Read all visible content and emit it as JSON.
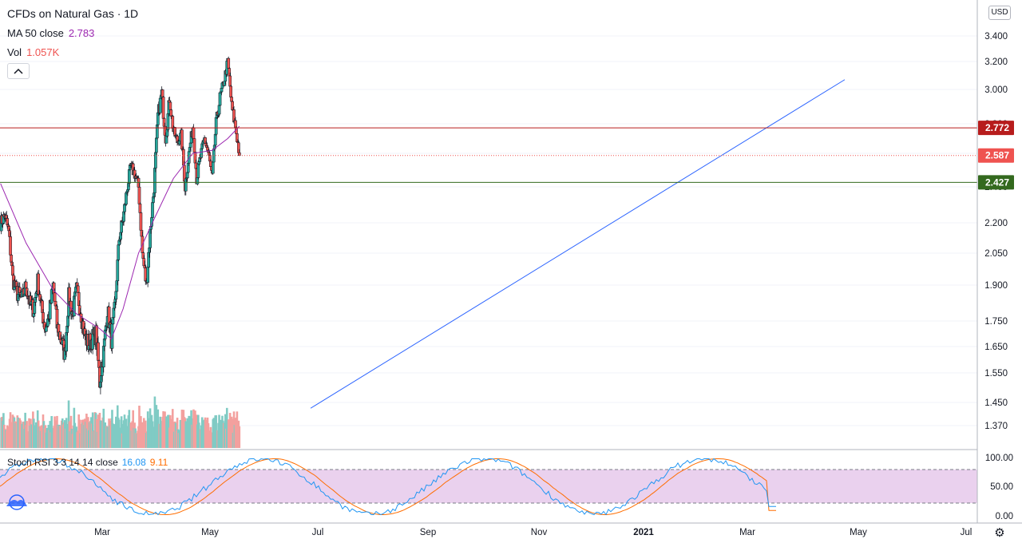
{
  "legend": {
    "title": "CFDs on Natural Gas · 1D",
    "ma_label": "MA 50 close",
    "ma_value": "2.783",
    "vol_label": "Vol",
    "vol_value": "1.057K",
    "collapse_icon": "chevron-up-icon"
  },
  "currency": "USD",
  "stoch": {
    "label": "Stoch RSI 3 3 14 14 close",
    "k_value": "16.08",
    "d_value": "9.11"
  },
  "colors": {
    "up": "#26a69a",
    "down": "#ef5350",
    "ma": "#9c27b0",
    "trendline": "#2962ff",
    "resistance": "#b71c1c",
    "support": "#33691e",
    "stoch_k": "#2196f3",
    "stoch_d": "#ff6d00",
    "stoch_band": "#e1bee7",
    "vol_up": "#80cbc4",
    "vol_down": "#f3a09e"
  },
  "chart_data": [
    {
      "type": "candlestick",
      "title": "CFDs on Natural Gas · 1D",
      "y_ticks": [
        "3.400",
        "3.200",
        "3.000",
        "2.800",
        "2.600",
        "2.400",
        "2.200",
        "2.050",
        "1.900",
        "1.750",
        "1.650",
        "1.550",
        "1.450",
        "1.370"
      ],
      "x_ticks": [
        "Mar",
        "May",
        "Jul",
        "Sep",
        "Nov",
        "2021",
        "Mar",
        "May",
        "Jul"
      ],
      "price_lines": [
        {
          "name": "resistance",
          "value": "2.772",
          "style": "solid"
        },
        {
          "name": "last_price",
          "value": "2.587",
          "style": "dotted"
        },
        {
          "name": "support",
          "value": "2.427",
          "style": "solid"
        }
      ],
      "trendline": {
        "start": {
          "date": "Jul",
          "value": 1.43
        },
        "end": {
          "date": "May 2021",
          "value": 3.07
        }
      },
      "close_series": [
        [
          "2020-01-02",
          2.2
        ],
        [
          "2020-01-10",
          2.24
        ],
        [
          "2020-01-17",
          2.15
        ],
        [
          "2020-01-24",
          1.93
        ],
        [
          "2020-01-31",
          1.87
        ],
        [
          "2020-02-10",
          1.84
        ],
        [
          "2020-02-17",
          1.9
        ],
        [
          "2020-02-24",
          1.82
        ],
        [
          "2020-03-02",
          1.8
        ],
        [
          "2020-03-09",
          1.92
        ],
        [
          "2020-03-16",
          1.8
        ],
        [
          "2020-03-23",
          1.72
        ],
        [
          "2020-03-30",
          1.78
        ],
        [
          "2020-04-06",
          1.9
        ],
        [
          "2020-04-13",
          1.73
        ],
        [
          "2020-04-20",
          1.68
        ],
        [
          "2020-04-27",
          1.62
        ],
        [
          "2020-05-04",
          1.85
        ],
        [
          "2020-05-11",
          1.78
        ],
        [
          "2020-05-18",
          1.88
        ],
        [
          "2020-05-25",
          1.8
        ],
        [
          "2020-06-01",
          1.7
        ],
        [
          "2020-06-08",
          1.66
        ],
        [
          "2020-06-15",
          1.68
        ],
        [
          "2020-06-22",
          1.7
        ],
        [
          "2020-06-29",
          1.52
        ],
        [
          "2020-07-06",
          1.63
        ],
        [
          "2020-07-13",
          1.8
        ],
        [
          "2020-07-20",
          1.68
        ],
        [
          "2020-07-27",
          1.82
        ],
        [
          "2020-08-03",
          2.12
        ],
        [
          "2020-08-10",
          2.22
        ],
        [
          "2020-08-17",
          2.38
        ],
        [
          "2020-08-24",
          2.52
        ],
        [
          "2020-08-31",
          2.48
        ],
        [
          "2020-09-07",
          2.4
        ],
        [
          "2020-09-14",
          2.05
        ],
        [
          "2020-09-21",
          1.9
        ],
        [
          "2020-09-28",
          2.15
        ],
        [
          "2020-10-05",
          2.4
        ],
        [
          "2020-10-12",
          2.85
        ],
        [
          "2020-10-19",
          2.98
        ],
        [
          "2020-10-26",
          2.7
        ],
        [
          "2020-11-02",
          2.95
        ],
        [
          "2020-11-09",
          2.75
        ],
        [
          "2020-11-16",
          2.68
        ],
        [
          "2020-11-23",
          2.72
        ],
        [
          "2020-11-30",
          2.4
        ],
        [
          "2020-12-07",
          2.6
        ],
        [
          "2020-12-14",
          2.78
        ],
        [
          "2020-12-21",
          2.45
        ],
        [
          "2020-12-28",
          2.58
        ],
        [
          "2021-01-04",
          2.7
        ],
        [
          "2021-01-11",
          2.6
        ],
        [
          "2021-01-18",
          2.45
        ],
        [
          "2021-01-25",
          2.8
        ],
        [
          "2021-02-01",
          2.95
        ],
        [
          "2021-02-08",
          3.05
        ],
        [
          "2021-02-15",
          3.2
        ],
        [
          "2021-02-22",
          2.9
        ],
        [
          "2021-03-01",
          2.78
        ],
        [
          "2021-03-08",
          2.587
        ]
      ],
      "ma50_series": [
        [
          "2020-01-02",
          2.42
        ],
        [
          "2020-02-17",
          2.1
        ],
        [
          "2020-04-06",
          1.88
        ],
        [
          "2020-05-18",
          1.78
        ],
        [
          "2020-06-29",
          1.72
        ],
        [
          "2020-07-20",
          1.68
        ],
        [
          "2020-08-10",
          1.8
        ],
        [
          "2020-09-07",
          2.05
        ],
        [
          "2020-10-05",
          2.22
        ],
        [
          "2020-11-09",
          2.45
        ],
        [
          "2020-12-14",
          2.6
        ],
        [
          "2021-01-18",
          2.62
        ],
        [
          "2021-02-15",
          2.7
        ],
        [
          "2021-03-08",
          2.783
        ]
      ]
    },
    {
      "type": "stochastic_rsi",
      "y_ticks": [
        "100.00",
        "50.00",
        "0.00"
      ],
      "band": [
        20,
        80
      ],
      "k_last": 16.08,
      "d_last": 9.11
    }
  ]
}
